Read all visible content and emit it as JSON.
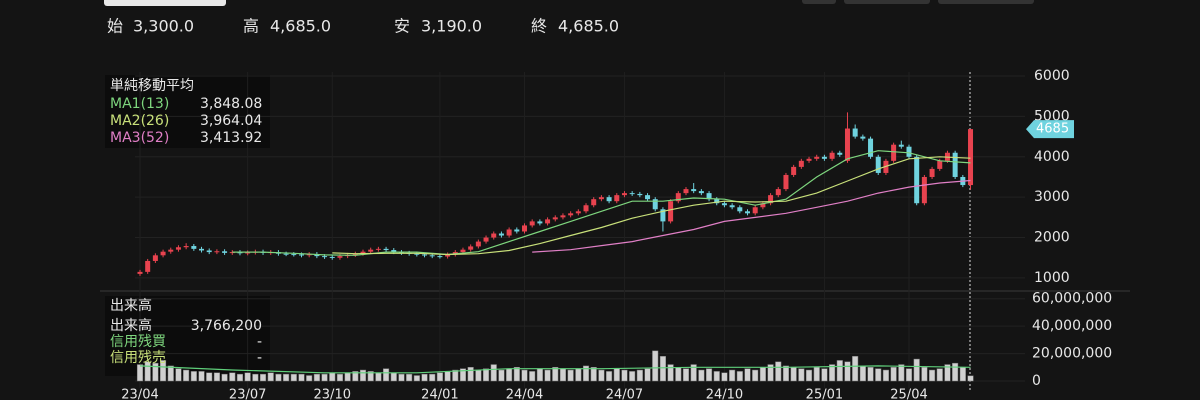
{
  "header": [
    {
      "label": "始",
      "value": "3,300.0"
    },
    {
      "label": "高",
      "value": "4,685.0"
    },
    {
      "label": "安",
      "value": "3,190.0"
    },
    {
      "label": "終",
      "value": "4,685.0"
    }
  ],
  "chart_data": [
    {
      "type": "candlestick",
      "legend_title": "単純移動平均",
      "up_color": "#e8434f",
      "down_color": "#6fd3df",
      "categories": [
        "23/04",
        null,
        null,
        null,
        null,
        null,
        null,
        null,
        null,
        null,
        null,
        null,
        null,
        null,
        "23/07",
        null,
        null,
        null,
        null,
        null,
        null,
        null,
        null,
        null,
        null,
        "23/10",
        null,
        null,
        null,
        null,
        null,
        null,
        null,
        null,
        null,
        null,
        null,
        null,
        null,
        "24/01",
        null,
        null,
        null,
        null,
        null,
        null,
        null,
        null,
        null,
        null,
        "24/04",
        null,
        null,
        null,
        null,
        null,
        null,
        null,
        null,
        null,
        null,
        null,
        null,
        "24/07",
        null,
        null,
        null,
        null,
        null,
        null,
        null,
        null,
        null,
        null,
        null,
        null,
        "24/10",
        null,
        null,
        null,
        null,
        null,
        null,
        null,
        null,
        null,
        null,
        null,
        null,
        "25/01",
        null,
        null,
        null,
        null,
        null,
        null,
        null,
        null,
        null,
        null,
        "25/04",
        null,
        null,
        null,
        null,
        null,
        null,
        null,
        null
      ],
      "candles": [
        [
          1100,
          1200,
          1050,
          1150
        ],
        [
          1150,
          1470,
          1100,
          1420
        ],
        [
          1420,
          1610,
          1370,
          1560
        ],
        [
          1560,
          1700,
          1510,
          1650
        ],
        [
          1650,
          1750,
          1600,
          1700
        ],
        [
          1700,
          1810,
          1650,
          1760
        ],
        [
          1760,
          1860,
          1710,
          1790
        ],
        [
          1790,
          1840,
          1670,
          1720
        ],
        [
          1720,
          1770,
          1630,
          1680
        ],
        [
          1680,
          1730,
          1590,
          1640
        ],
        [
          1640,
          1710,
          1590,
          1660
        ],
        [
          1660,
          1710,
          1570,
          1620
        ],
        [
          1620,
          1690,
          1570,
          1640
        ],
        [
          1640,
          1690,
          1560,
          1610
        ],
        [
          1610,
          1680,
          1560,
          1630
        ],
        [
          1630,
          1700,
          1580,
          1650
        ],
        [
          1650,
          1700,
          1570,
          1620
        ],
        [
          1620,
          1690,
          1570,
          1640
        ],
        [
          1640,
          1690,
          1550,
          1600
        ],
        [
          1600,
          1650,
          1540,
          1590
        ],
        [
          1590,
          1640,
          1530,
          1580
        ],
        [
          1580,
          1630,
          1510,
          1560
        ],
        [
          1560,
          1640,
          1510,
          1590
        ],
        [
          1590,
          1640,
          1490,
          1540
        ],
        [
          1540,
          1590,
          1470,
          1520
        ],
        [
          1520,
          1570,
          1450,
          1500
        ],
        [
          1500,
          1590,
          1450,
          1540
        ],
        [
          1540,
          1620,
          1490,
          1570
        ],
        [
          1570,
          1650,
          1520,
          1600
        ],
        [
          1600,
          1700,
          1550,
          1650
        ],
        [
          1650,
          1750,
          1600,
          1700
        ],
        [
          1700,
          1770,
          1650,
          1720
        ],
        [
          1720,
          1770,
          1640,
          1690
        ],
        [
          1690,
          1740,
          1590,
          1640
        ],
        [
          1640,
          1690,
          1570,
          1620
        ],
        [
          1620,
          1670,
          1550,
          1600
        ],
        [
          1600,
          1650,
          1530,
          1580
        ],
        [
          1580,
          1630,
          1510,
          1560
        ],
        [
          1560,
          1610,
          1490,
          1540
        ],
        [
          1540,
          1590,
          1480,
          1530
        ],
        [
          1530,
          1630,
          1480,
          1580
        ],
        [
          1580,
          1690,
          1530,
          1640
        ],
        [
          1640,
          1750,
          1590,
          1700
        ],
        [
          1700,
          1830,
          1650,
          1780
        ],
        [
          1780,
          1950,
          1730,
          1900
        ],
        [
          1900,
          2050,
          1850,
          2000
        ],
        [
          2000,
          2150,
          1950,
          2100
        ],
        [
          2100,
          2150,
          2000,
          2050
        ],
        [
          2050,
          2250,
          2000,
          2200
        ],
        [
          2200,
          2250,
          2100,
          2150
        ],
        [
          2150,
          2350,
          2100,
          2300
        ],
        [
          2300,
          2450,
          2250,
          2400
        ],
        [
          2400,
          2450,
          2300,
          2350
        ],
        [
          2350,
          2500,
          2300,
          2450
        ],
        [
          2450,
          2550,
          2400,
          2500
        ],
        [
          2500,
          2600,
          2450,
          2550
        ],
        [
          2550,
          2650,
          2500,
          2600
        ],
        [
          2600,
          2700,
          2550,
          2650
        ],
        [
          2650,
          2850,
          2600,
          2800
        ],
        [
          2800,
          3000,
          2750,
          2950
        ],
        [
          2950,
          3050,
          2900,
          3000
        ],
        [
          3000,
          3050,
          2850,
          2900
        ],
        [
          2900,
          3100,
          2850,
          3050
        ],
        [
          3050,
          3150,
          3000,
          3100
        ],
        [
          3100,
          3150,
          3030,
          3080
        ],
        [
          3080,
          3130,
          3000,
          3050
        ],
        [
          3050,
          3100,
          2900,
          2950
        ],
        [
          2950,
          3000,
          2650,
          2700
        ],
        [
          2700,
          2750,
          2150,
          2400
        ],
        [
          2400,
          2950,
          2350,
          2900
        ],
        [
          2900,
          3150,
          2850,
          3100
        ],
        [
          3100,
          3250,
          3050,
          3200
        ],
        [
          3200,
          3350,
          3100,
          3150
        ],
        [
          3150,
          3200,
          3050,
          3100
        ],
        [
          3100,
          3150,
          2900,
          2950
        ],
        [
          2950,
          3000,
          2800,
          2850
        ],
        [
          2850,
          2900,
          2750,
          2800
        ],
        [
          2800,
          2850,
          2700,
          2750
        ],
        [
          2750,
          2800,
          2600,
          2650
        ],
        [
          2650,
          2700,
          2550,
          2600
        ],
        [
          2600,
          2800,
          2550,
          2750
        ],
        [
          2750,
          2900,
          2700,
          2850
        ],
        [
          2850,
          3100,
          2800,
          3050
        ],
        [
          3050,
          3250,
          3000,
          3200
        ],
        [
          3200,
          3600,
          3150,
          3550
        ],
        [
          3550,
          3800,
          3500,
          3750
        ],
        [
          3750,
          3950,
          3700,
          3900
        ],
        [
          3900,
          4000,
          3850,
          3950
        ],
        [
          3950,
          4050,
          3900,
          4000
        ],
        [
          4000,
          4050,
          3900,
          3950
        ],
        [
          3950,
          4150,
          3900,
          4100
        ],
        [
          4100,
          4150,
          4000,
          4050
        ],
        [
          3900,
          5100,
          3850,
          4700
        ],
        [
          4700,
          4800,
          4450,
          4500
        ],
        [
          4500,
          4550,
          4400,
          4450
        ],
        [
          4450,
          4500,
          3950,
          4000
        ],
        [
          4000,
          4050,
          3550,
          3600
        ],
        [
          3600,
          3950,
          3550,
          3900
        ],
        [
          3900,
          4350,
          3850,
          4300
        ],
        [
          4300,
          4400,
          4200,
          4250
        ],
        [
          4250,
          4300,
          3950,
          4000
        ],
        [
          4000,
          4050,
          2800,
          2850
        ],
        [
          2850,
          3550,
          2800,
          3500
        ],
        [
          3500,
          3750,
          3450,
          3700
        ],
        [
          3700,
          3950,
          3650,
          3900
        ],
        [
          3900,
          4150,
          3850,
          4100
        ],
        [
          4100,
          4150,
          3450,
          3500
        ],
        [
          3500,
          3550,
          3250,
          3300
        ],
        [
          3300,
          4685,
          3190,
          4685
        ]
      ],
      "series": [
        {
          "name": "MA1(13)",
          "color": "#7ed67e",
          "last_label": "3,848.08",
          "x": [
            12,
            16,
            20,
            24,
            28,
            32,
            36,
            40,
            44,
            48,
            52,
            56,
            60,
            64,
            68,
            72,
            76,
            80,
            84,
            88,
            92,
            96,
            100,
            104,
            108
          ],
          "values": [
            1640,
            1640,
            1610,
            1570,
            1560,
            1640,
            1640,
            1580,
            1650,
            1900,
            2150,
            2400,
            2650,
            2900,
            2900,
            2980,
            2950,
            2800,
            2950,
            3500,
            3950,
            4150,
            4100,
            3900,
            3848.08
          ]
        },
        {
          "name": "MA2(26)",
          "color": "#c8e07a",
          "last_label": "3,964.04",
          "x": [
            25,
            28,
            32,
            36,
            40,
            44,
            48,
            52,
            56,
            60,
            64,
            68,
            72,
            76,
            80,
            84,
            88,
            92,
            96,
            100,
            104,
            108
          ],
          "values": [
            1620,
            1600,
            1610,
            1610,
            1580,
            1600,
            1680,
            1850,
            2050,
            2250,
            2480,
            2650,
            2800,
            2900,
            2880,
            2900,
            3100,
            3400,
            3700,
            3950,
            4000,
            3964.04
          ]
        },
        {
          "name": "MA3(52)",
          "color": "#e07fc6",
          "last_label": "3,413.92",
          "x": [
            51,
            56,
            60,
            64,
            68,
            72,
            76,
            80,
            84,
            88,
            92,
            96,
            100,
            104,
            108
          ],
          "values": [
            1640,
            1700,
            1800,
            1900,
            2050,
            2200,
            2400,
            2500,
            2600,
            2750,
            2900,
            3100,
            3250,
            3350,
            3413.92
          ]
        }
      ],
      "price_tag": {
        "value": 4685,
        "label": "4685"
      },
      "ylim": [
        800,
        6100
      ],
      "yticks": [
        1000,
        2000,
        3000,
        4000,
        5000,
        6000
      ]
    },
    {
      "type": "volume",
      "title": "出来高",
      "bar_color": "#d0d0d0",
      "legend": [
        {
          "name": "出来高",
          "value": "3,766,200",
          "color": "#e8e8e8"
        },
        {
          "name": "信用残買",
          "value": "-",
          "color": "#7ed67e"
        },
        {
          "name": "信用残売",
          "value": "-",
          "color": "#c8e07a"
        }
      ],
      "values": [
        12000000,
        14000000,
        13000000,
        15000000,
        11000000,
        9000000,
        8000000,
        7000000,
        7000000,
        6000000,
        6000000,
        5000000,
        6000000,
        5000000,
        6000000,
        5000000,
        5000000,
        6000000,
        5000000,
        5000000,
        5000000,
        5000000,
        4000000,
        5000000,
        5000000,
        6000000,
        5000000,
        6000000,
        7000000,
        8000000,
        7000000,
        6000000,
        9000000,
        6000000,
        5000000,
        5000000,
        4000000,
        5000000,
        5000000,
        6000000,
        7000000,
        8000000,
        9000000,
        10000000,
        8000000,
        9000000,
        12000000,
        8000000,
        9000000,
        10000000,
        8000000,
        7000000,
        9000000,
        8000000,
        10000000,
        9000000,
        8000000,
        9000000,
        11000000,
        10000000,
        8000000,
        7000000,
        9000000,
        8000000,
        7000000,
        8000000,
        9000000,
        22000000,
        18000000,
        12000000,
        10000000,
        9000000,
        12000000,
        8000000,
        9000000,
        7000000,
        6000000,
        8000000,
        7000000,
        9000000,
        8000000,
        10000000,
        12000000,
        14000000,
        11000000,
        10000000,
        9000000,
        8000000,
        10000000,
        9000000,
        12000000,
        15000000,
        14000000,
        18000000,
        11000000,
        10000000,
        9000000,
        8000000,
        10000000,
        12000000,
        9000000,
        16000000,
        10000000,
        8000000,
        9000000,
        12000000,
        13000000,
        10000000,
        3766200
      ],
      "ma": {
        "color": "#5fcf7a",
        "x": [
          0,
          12,
          24,
          36,
          48,
          60,
          72,
          84,
          96,
          108
        ],
        "values": [
          11000000,
          8000000,
          6000000,
          6000000,
          9000000,
          9000000,
          10000000,
          10000000,
          11000000,
          10000000
        ]
      },
      "ylim": [
        0,
        62000000
      ],
      "yticks": [
        {
          "value": 0,
          "label": "0"
        },
        {
          "value": 20000000,
          "label": "20,000,000"
        },
        {
          "value": 40000000,
          "label": "40,000,000"
        },
        {
          "value": 60000000,
          "label": "60,000,000"
        }
      ]
    }
  ]
}
